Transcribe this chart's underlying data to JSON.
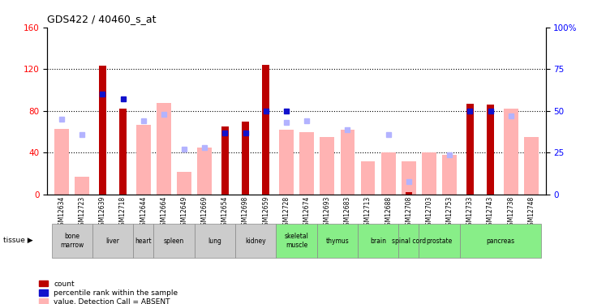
{
  "title": "GDS422 / 40460_s_at",
  "samples": [
    "GSM12634",
    "GSM12723",
    "GSM12639",
    "GSM12718",
    "GSM12644",
    "GSM12664",
    "GSM12649",
    "GSM12669",
    "GSM12654",
    "GSM12698",
    "GSM12659",
    "GSM12728",
    "GSM12674",
    "GSM12693",
    "GSM12683",
    "GSM12713",
    "GSM12688",
    "GSM12708",
    "GSM12703",
    "GSM12753",
    "GSM12733",
    "GSM12743",
    "GSM12738",
    "GSM12748"
  ],
  "tissues": [
    {
      "name": "bone\nmarrow",
      "start": 0,
      "end": 2,
      "green": false
    },
    {
      "name": "liver",
      "start": 2,
      "end": 4,
      "green": false
    },
    {
      "name": "heart",
      "start": 4,
      "end": 5,
      "green": false
    },
    {
      "name": "spleen",
      "start": 5,
      "end": 7,
      "green": false
    },
    {
      "name": "lung",
      "start": 7,
      "end": 9,
      "green": false
    },
    {
      "name": "kidney",
      "start": 9,
      "end": 11,
      "green": false
    },
    {
      "name": "skeletal\nmuscle",
      "start": 11,
      "end": 13,
      "green": true
    },
    {
      "name": "thymus",
      "start": 13,
      "end": 15,
      "green": true
    },
    {
      "name": "brain",
      "start": 15,
      "end": 17,
      "green": true
    },
    {
      "name": "spinal cord",
      "start": 17,
      "end": 18,
      "green": true
    },
    {
      "name": "prostate",
      "start": 18,
      "end": 20,
      "green": true
    },
    {
      "name": "pancreas",
      "start": 20,
      "end": 24,
      "green": true
    }
  ],
  "count_bars": [
    null,
    null,
    123,
    82,
    null,
    null,
    null,
    null,
    65,
    70,
    124,
    null,
    null,
    null,
    null,
    null,
    null,
    2,
    null,
    null,
    87,
    86,
    null,
    null
  ],
  "percentile_pct": [
    null,
    null,
    60,
    57,
    null,
    null,
    null,
    null,
    37,
    37,
    50,
    50,
    null,
    null,
    null,
    null,
    null,
    null,
    null,
    null,
    50,
    50,
    null,
    null
  ],
  "value_absent": [
    63,
    17,
    null,
    null,
    67,
    88,
    22,
    45,
    null,
    null,
    null,
    62,
    60,
    55,
    62,
    32,
    40,
    32,
    40,
    38,
    null,
    null,
    82,
    55
  ],
  "rank_absent_pct": [
    45,
    36,
    null,
    null,
    44,
    48,
    27,
    28,
    null,
    null,
    null,
    43,
    44,
    null,
    39,
    null,
    36,
    8,
    null,
    24,
    null,
    null,
    47,
    null
  ],
  "left_ylim": [
    0,
    160
  ],
  "right_ylim": [
    0,
    100
  ],
  "left_yticks": [
    0,
    40,
    80,
    120,
    160
  ],
  "right_yticks": [
    0,
    25,
    50,
    75,
    100
  ],
  "count_color": "#bb0000",
  "percentile_color": "#1111cc",
  "value_absent_color": "#ffb3b3",
  "rank_absent_color": "#b3b3ff",
  "bg_gray": "#d8d8d8",
  "green_color": "#88ee88",
  "gray_color": "#cccccc"
}
